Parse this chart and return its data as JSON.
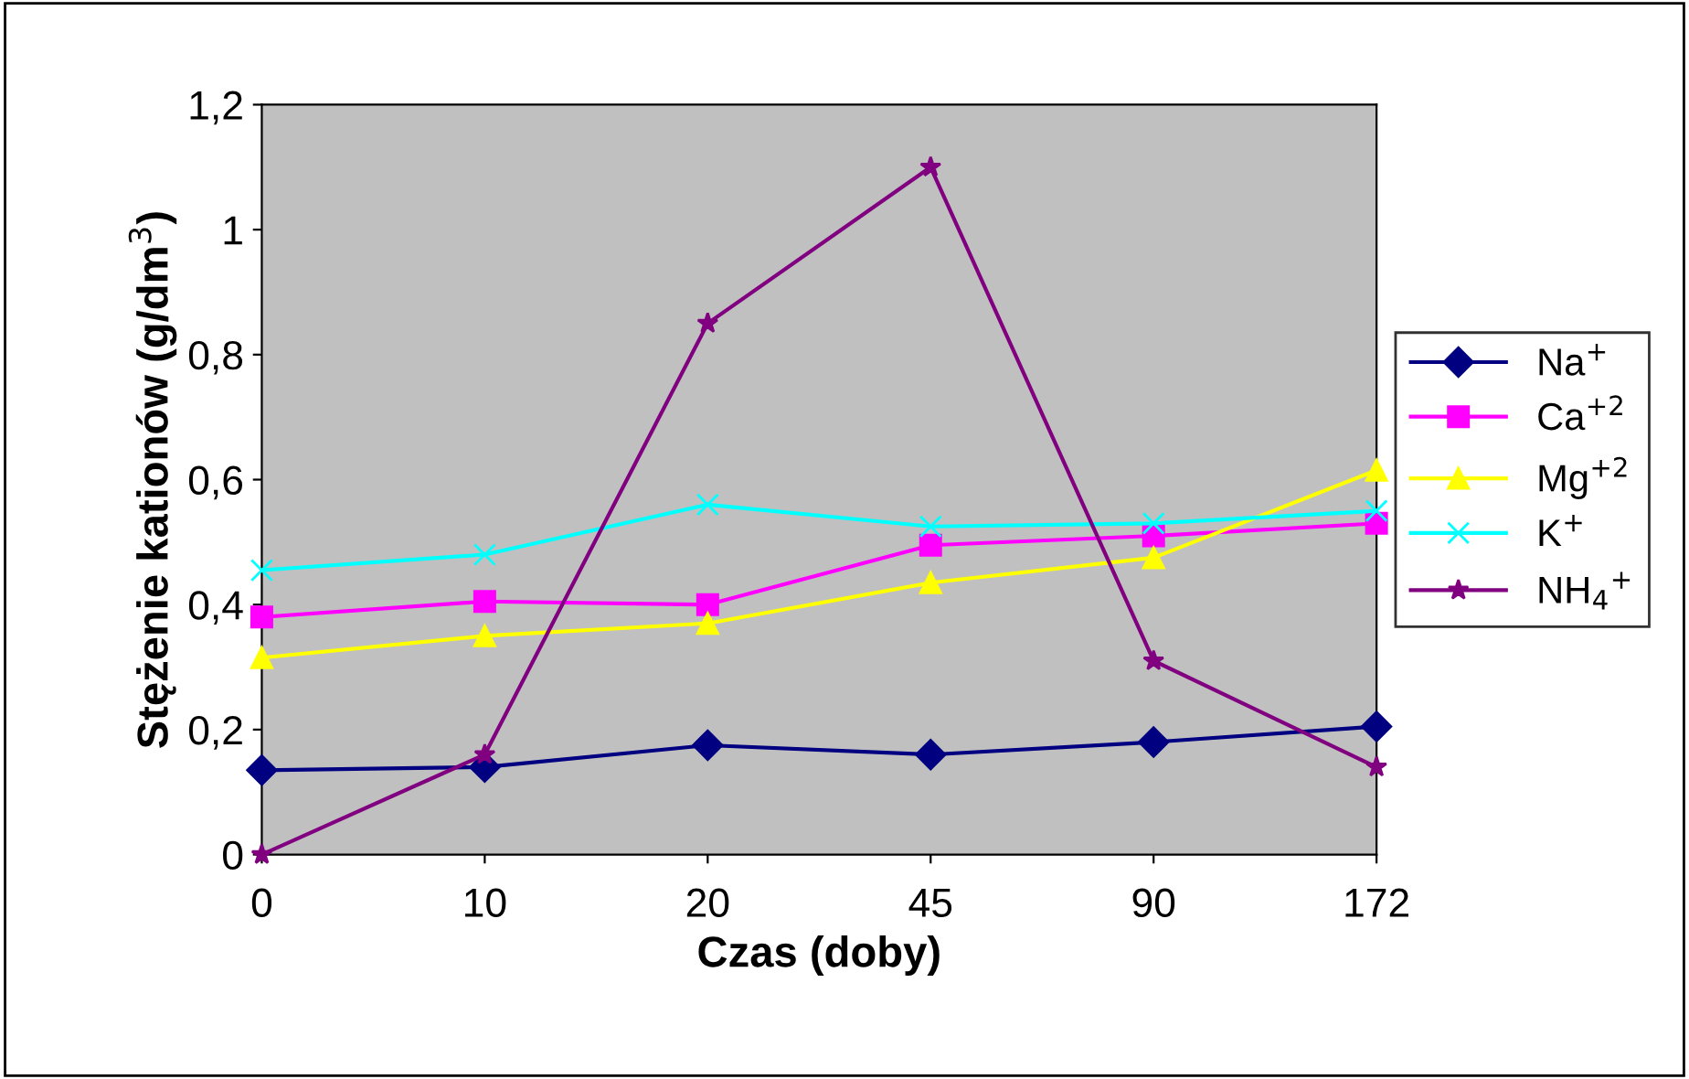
{
  "chart_data": {
    "type": "line",
    "xlabel": "Czas (doby)",
    "ylabel": "Stężenie kationów (g/dm$^{3}$)",
    "categories": [
      "0",
      "10",
      "20",
      "45",
      "90",
      "172"
    ],
    "ylim": [
      0,
      1.2
    ],
    "yticks": [
      0,
      {
        "value": 0.2,
        "label": "0,2"
      },
      {
        "value": 0.4,
        "label": "0,4"
      },
      {
        "value": 0.6,
        "label": "0,6"
      },
      {
        "value": 0.8,
        "label": "0,8"
      },
      1,
      {
        "value": 1.2,
        "label": "1,2"
      }
    ],
    "grid": false,
    "legend": "right",
    "series": [
      {
        "name": "Na$^{+}$",
        "color": "#000080",
        "marker": "diamond",
        "values": [
          0.135,
          0.14,
          0.175,
          0.16,
          0.18,
          0.205
        ]
      },
      {
        "name": "Ca$^{+2}$",
        "color": "#ff00ff",
        "marker": "square",
        "values": [
          0.38,
          0.405,
          0.4,
          0.495,
          0.51,
          0.53
        ]
      },
      {
        "name": "Mg$^{+2}$",
        "color": "#ffff00",
        "marker": "triangle",
        "values": [
          0.315,
          0.35,
          0.37,
          0.435,
          0.475,
          0.615
        ]
      },
      {
        "name": "K$^{+}$",
        "color": "#00ffff",
        "marker": "cross",
        "values": [
          0.455,
          0.48,
          0.56,
          0.525,
          0.53,
          0.55
        ]
      },
      {
        "name": "NH$_{4}$$^{+}$",
        "color": "#800080",
        "marker": "star",
        "values": [
          0,
          0.16,
          0.85,
          1.1,
          0.31,
          0.14
        ]
      }
    ]
  }
}
